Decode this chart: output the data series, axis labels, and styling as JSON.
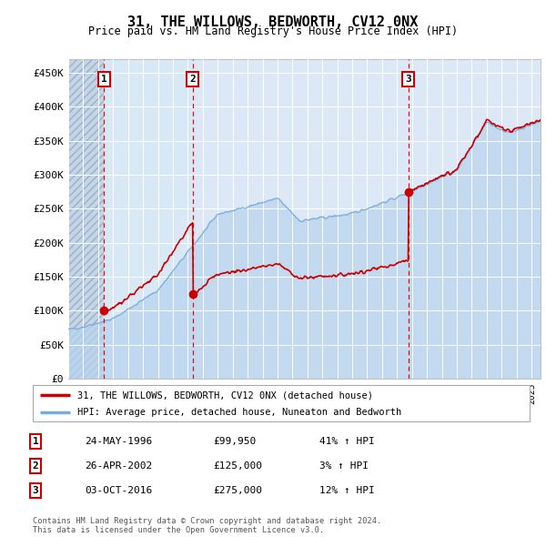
{
  "title": "31, THE WILLOWS, BEDWORTH, CV12 0NX",
  "subtitle": "Price paid vs. HM Land Registry's House Price Index (HPI)",
  "ylabel_ticks": [
    "£0",
    "£50K",
    "£100K",
    "£150K",
    "£200K",
    "£250K",
    "£300K",
    "£350K",
    "£400K",
    "£450K"
  ],
  "ylim": [
    0,
    470000
  ],
  "xlim_start": 1994.0,
  "xlim_end": 2025.6,
  "sale_dates": [
    1996.38,
    2002.32,
    2016.75
  ],
  "sale_prices": [
    99950,
    125000,
    275000
  ],
  "sale_labels": [
    "1",
    "2",
    "3"
  ],
  "legend_red": "31, THE WILLOWS, BEDWORTH, CV12 0NX (detached house)",
  "legend_blue": "HPI: Average price, detached house, Nuneaton and Bedworth",
  "table_rows": [
    [
      "1",
      "24-MAY-1996",
      "£99,950",
      "41% ↑ HPI"
    ],
    [
      "2",
      "26-APR-2002",
      "£125,000",
      "3% ↑ HPI"
    ],
    [
      "3",
      "03-OCT-2016",
      "£275,000",
      "12% ↑ HPI"
    ]
  ],
  "footer": "Contains HM Land Registry data © Crown copyright and database right 2024.\nThis data is licensed under the Open Government Licence v3.0.",
  "plot_bg": "#dce8f5",
  "hatch_bg": "#c5d5e8",
  "grid_color": "#ffffff",
  "red_line_color": "#cc0000",
  "blue_line_color": "#7aabdb",
  "blue_fill_color": "#b8d4ee",
  "vline_color": "#cc0000",
  "between_sale_bg": "#d4e4f4"
}
